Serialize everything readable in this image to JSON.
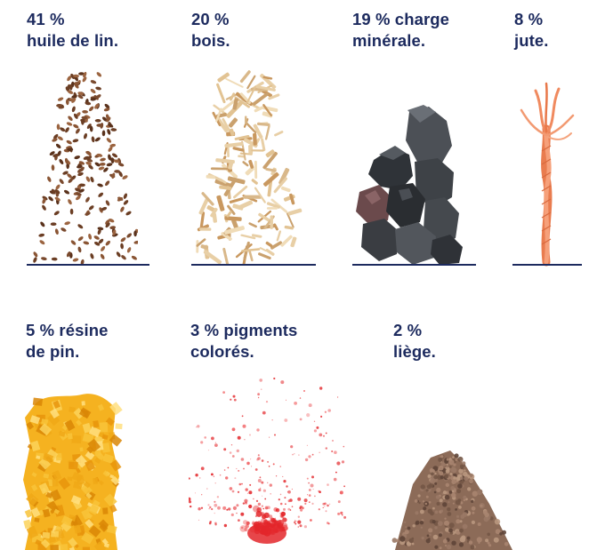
{
  "items": [
    {
      "line1": "41 %",
      "line2": "huile de lin.",
      "material": "flax-seeds",
      "color": "#7a4a2e"
    },
    {
      "line1": "20 %",
      "line2": "bois.",
      "material": "wood-shavings",
      "color": "#d9b88a"
    },
    {
      "line1": "19 % charge",
      "line2": "minérale.",
      "material": "mineral-stones",
      "color": "#3d4248"
    },
    {
      "line1": "8 %",
      "line2": "jute.",
      "material": "jute-rope",
      "color": "#f08a5f"
    },
    {
      "line1": "5 % résine",
      "line2": "de pin.",
      "material": "pine-resin",
      "color": "#f2a51c"
    },
    {
      "line1": "3 % pigments",
      "line2": "colorés.",
      "material": "pigment-splash",
      "color": "#e3262a"
    },
    {
      "line1": "2 %",
      "line2": "liège.",
      "material": "cork-granules",
      "color": "#8c6b58"
    }
  ],
  "colors": {
    "text": "#1c2a5e",
    "background": "#ffffff"
  }
}
